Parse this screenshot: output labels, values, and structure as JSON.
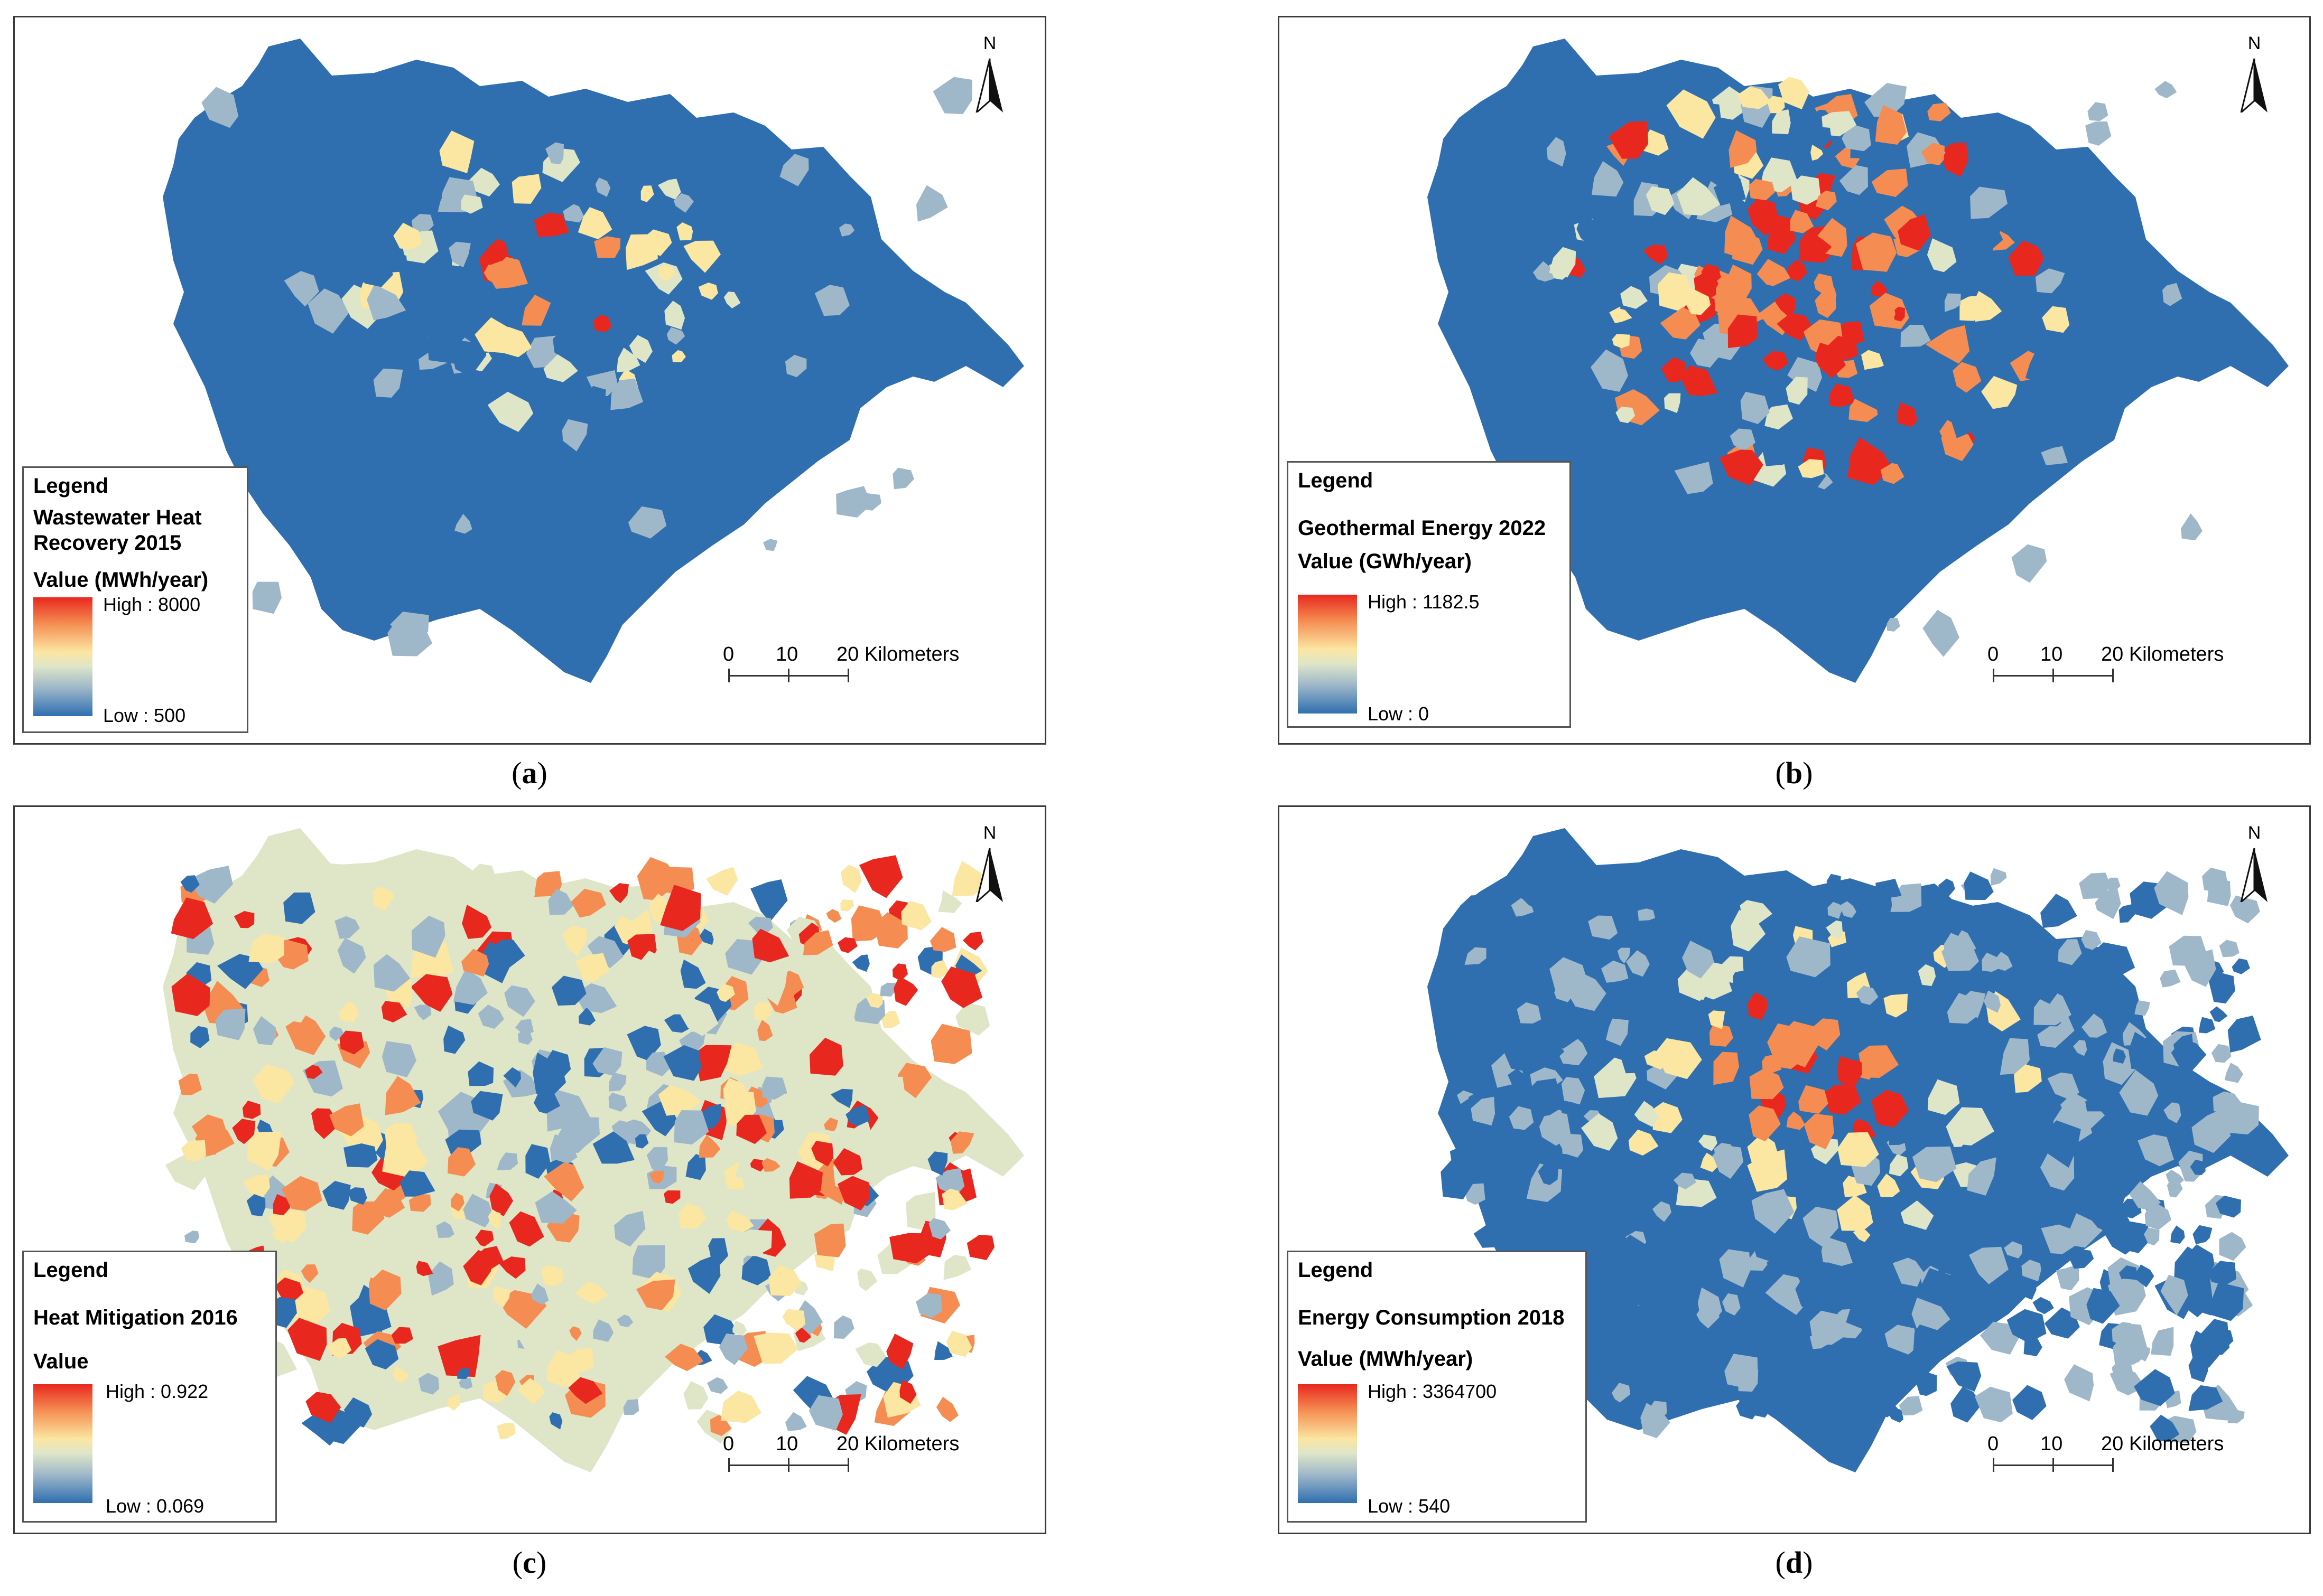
{
  "panels": [
    {
      "id": "a",
      "caption_letter": "a",
      "legend_title": "Legend",
      "layer_title": "Wastewater Heat Recovery 2015",
      "field": "Value (MWh/year)",
      "high": "High : 8000",
      "low": "Low : 500",
      "pattern": "center"
    },
    {
      "id": "b",
      "caption_letter": "b",
      "legend_title": "Legend",
      "layer_title": "Geothermal Energy 2022",
      "field": "Value (GWh/year)",
      "high": "High : 1182.5",
      "low": "Low : 0",
      "pattern": "center-wide"
    },
    {
      "id": "c",
      "caption_letter": "c",
      "legend_title": "Legend",
      "layer_title": "Heat Mitigation 2016",
      "field": "Value",
      "high": "High : 0.922",
      "low": "Low : 0.069",
      "pattern": "inverse"
    },
    {
      "id": "d",
      "caption_letter": "d",
      "legend_title": "Legend",
      "layer_title": "Energy Consumption 2018",
      "field": "Value (MWh/year)",
      "high": "High : 3364700",
      "low": "Low : 540",
      "pattern": "center-mixed"
    }
  ],
  "north_arrow": "N",
  "scale_bar": {
    "labels": [
      "0",
      "10",
      "20 Kilometers"
    ]
  },
  "colors": {
    "low": "#2f6fb0",
    "mid_low": "#9fb8c9",
    "mid": "#dfe6c8",
    "mid_high": "#fbe6a2",
    "high_mid": "#f58d52",
    "high": "#e8281e"
  }
}
